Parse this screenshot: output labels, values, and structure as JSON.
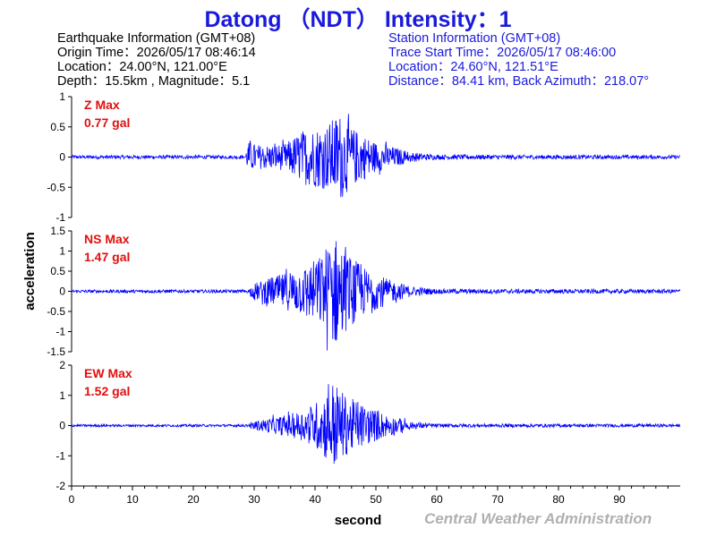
{
  "title": "Datong （NDT） Intensity：1",
  "earthquake": {
    "header": "Earthquake Information  (GMT+08)",
    "origin_time": "Origin Time：2026/05/17 08:46:14",
    "location": "Location：24.00°N, 121.00°E",
    "depth_magnitude": "Depth：15.5km , Magnitude：5.1"
  },
  "station": {
    "header": "Station Information  (GMT+08)",
    "trace_start": "Trace Start Time：2026/05/17 08:46:00",
    "location": "Location：24.60°N, 121.51°E",
    "distance": "Distance：84.41 km, Back Azimuth：218.07°"
  },
  "credit": "Central Weather Administration",
  "colors": {
    "trace": "#0000ff",
    "max_label": "#e01010",
    "title": "#1a1adc"
  },
  "chart_data": {
    "type": "line",
    "xlabel": "second",
    "ylabel": "acceleration",
    "xlim": [
      0,
      100
    ],
    "xticks": [
      0,
      10,
      20,
      30,
      40,
      50,
      60,
      70,
      80,
      90
    ],
    "panels": [
      {
        "component": "Z",
        "max_label": "Z Max",
        "max_value": "0.77 gal",
        "ylim": [
          -1,
          1
        ],
        "yticks": [
          1,
          0.5,
          0,
          -0.5,
          -1
        ],
        "envelope": {
          "x": [
            0,
            28.5,
            29,
            31,
            35,
            38,
            42,
            44,
            46,
            50,
            56,
            60,
            100
          ],
          "amp": [
            0.03,
            0.03,
            0.25,
            0.2,
            0.22,
            0.45,
            0.55,
            0.75,
            0.5,
            0.25,
            0.08,
            0.04,
            0.03
          ]
        }
      },
      {
        "component": "NS",
        "max_label": "NS Max",
        "max_value": "1.47 gal",
        "ylim": [
          -1.5,
          1.5
        ],
        "yticks": [
          1.5,
          1,
          0.5,
          0,
          -0.5,
          -1,
          -1.5
        ],
        "envelope": {
          "x": [
            0,
            29,
            30,
            34,
            38,
            41,
            43,
            45,
            48,
            52,
            56,
            60,
            100
          ],
          "amp": [
            0.04,
            0.04,
            0.2,
            0.4,
            0.6,
            0.9,
            1.47,
            1.0,
            0.6,
            0.3,
            0.12,
            0.06,
            0.05
          ]
        }
      },
      {
        "component": "EW",
        "max_label": "EW Max",
        "max_value": "1.52 gal",
        "ylim": [
          -2,
          2
        ],
        "yticks": [
          2,
          1,
          0,
          -1,
          -2
        ],
        "envelope": {
          "x": [
            0,
            29,
            30,
            34,
            38,
            41,
            43,
            45,
            48,
            52,
            56,
            60,
            100
          ],
          "amp": [
            0.04,
            0.04,
            0.15,
            0.3,
            0.5,
            0.9,
            1.52,
            1.0,
            0.7,
            0.35,
            0.12,
            0.06,
            0.05
          ]
        }
      }
    ]
  }
}
